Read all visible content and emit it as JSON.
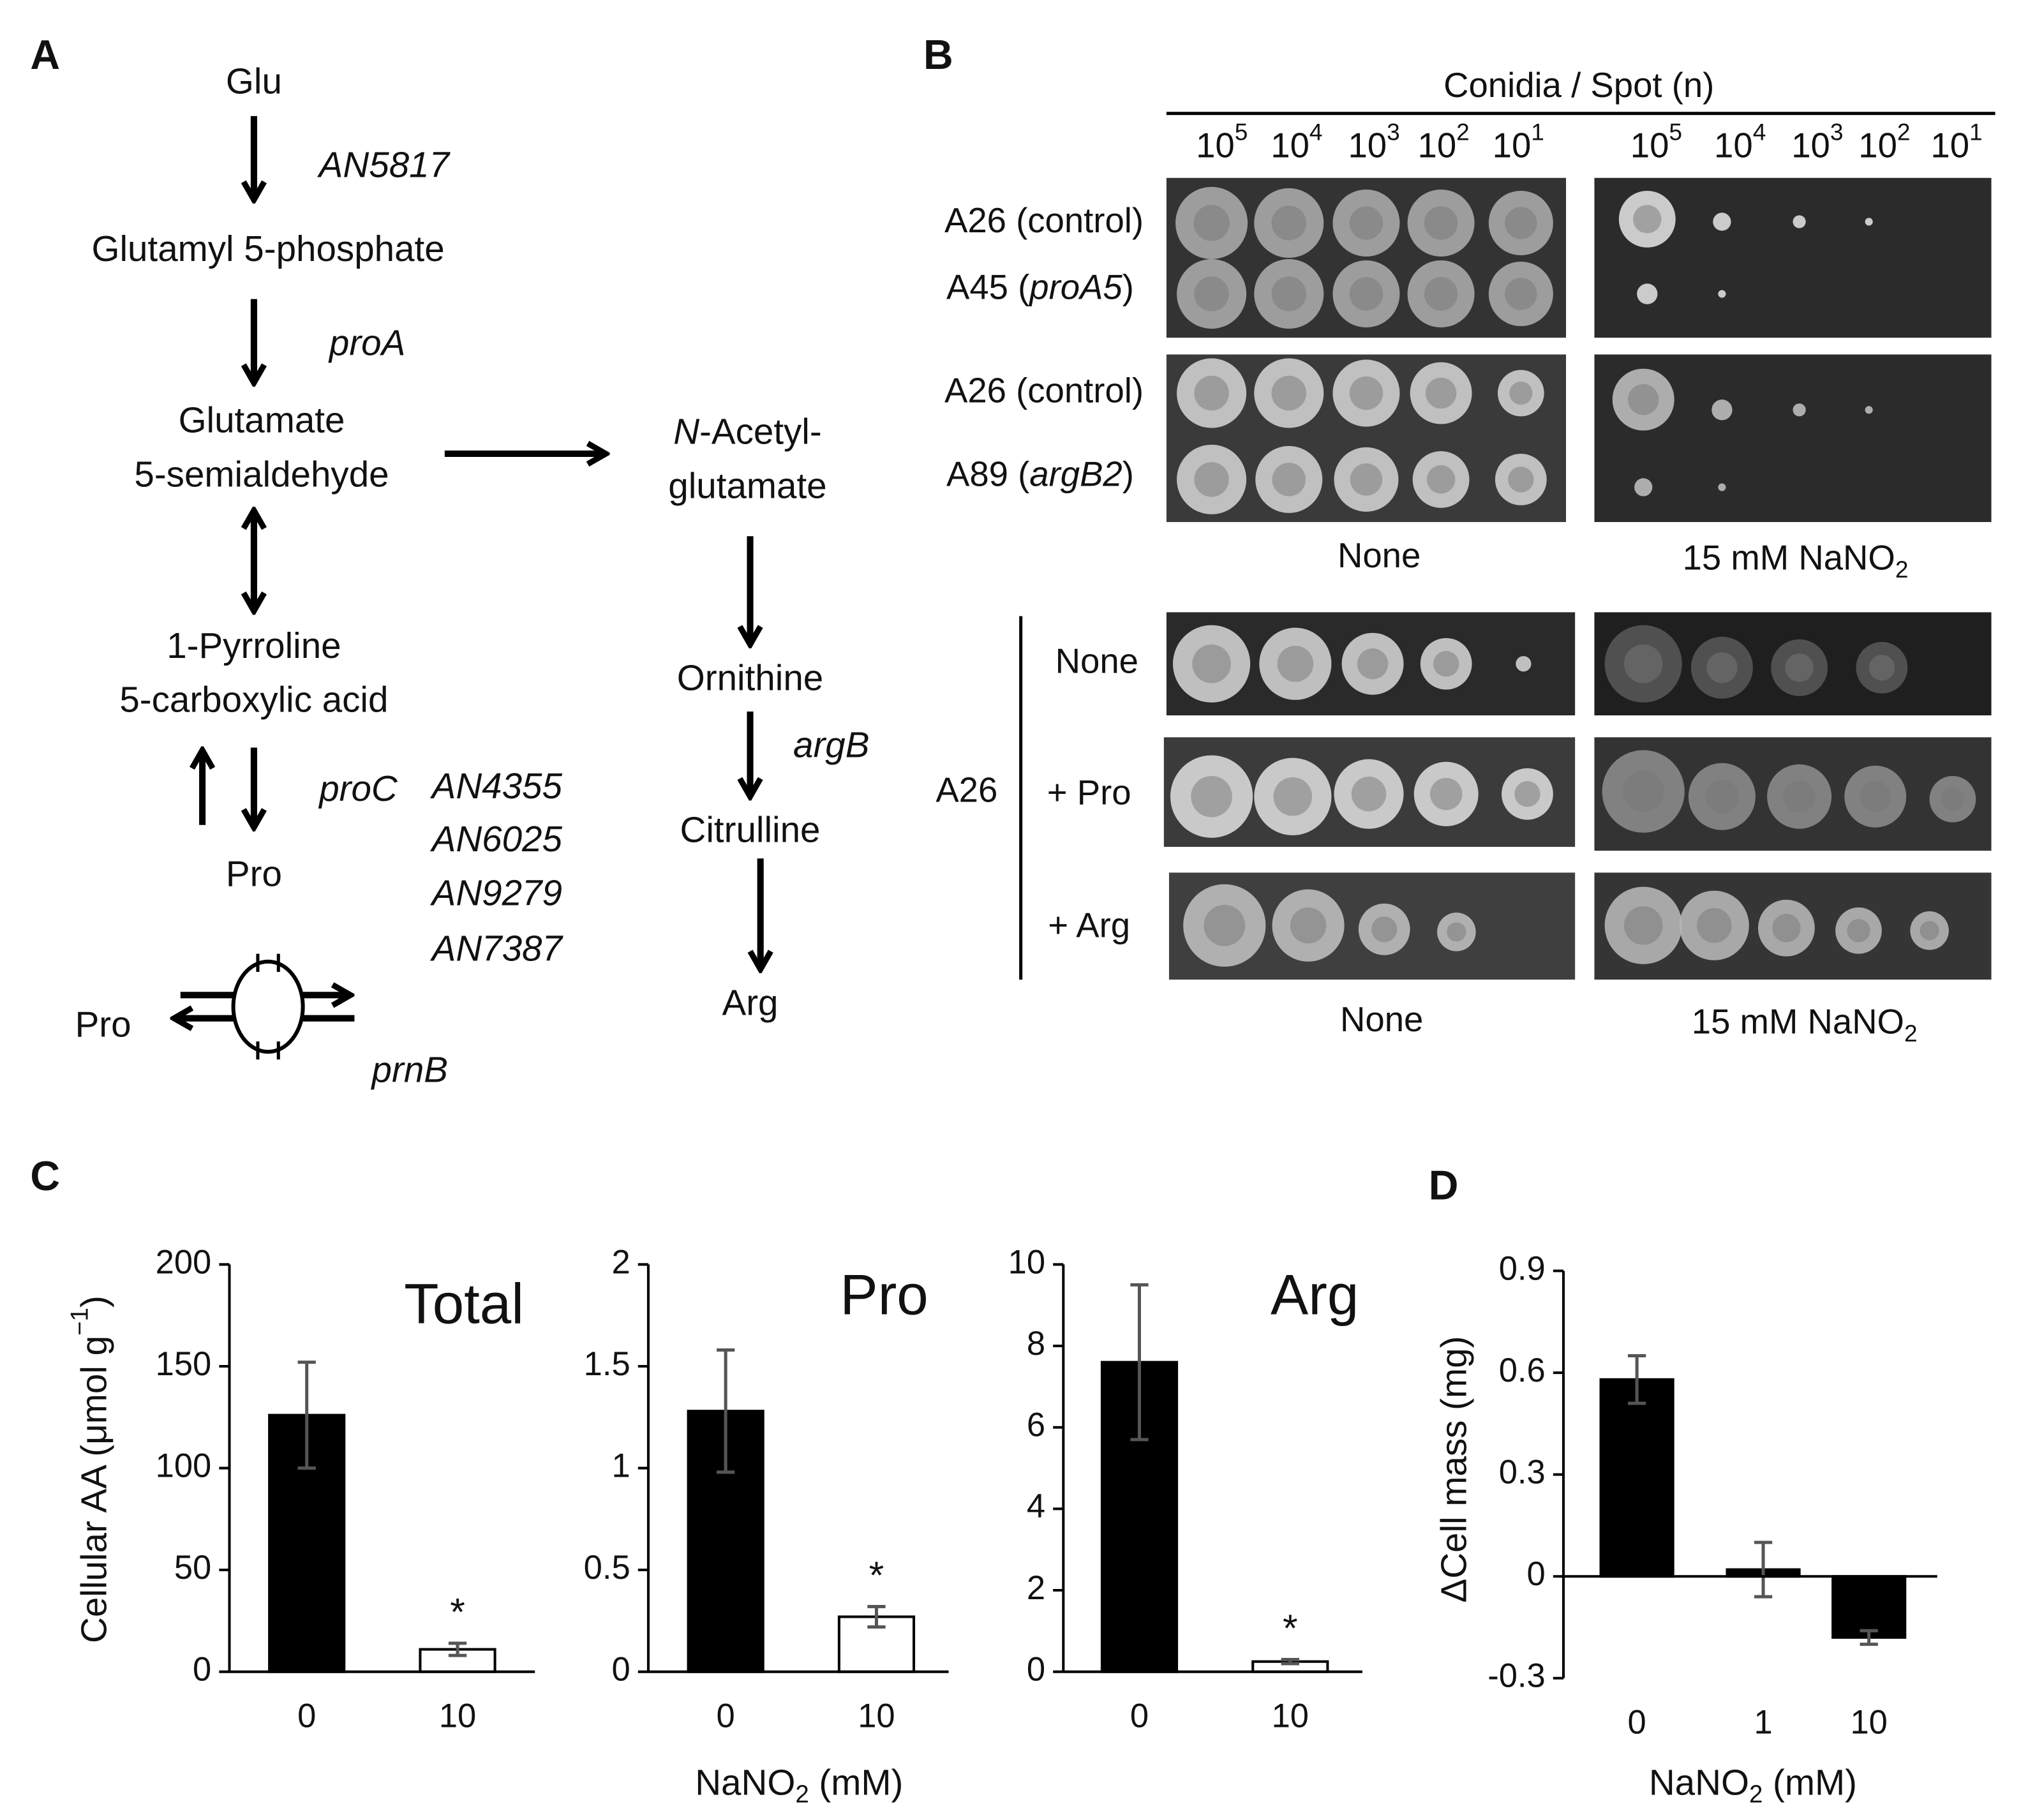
{
  "panel_a": {
    "label": "A",
    "metabolites": [
      "Glu",
      "Glutamyl 5-phosphate",
      "Glutamate",
      "5-semialdehyde",
      "1-Pyrroline",
      "5-carboxylic acid",
      "Pro",
      "Pro",
      [
        {
          "t": "N",
          "s": "i"
        },
        {
          "t": "-Acetyl-",
          "s": "n"
        }
      ],
      "glutamate",
      "Ornithine",
      "Citrulline",
      "Arg"
    ],
    "genes": [
      "AN5817",
      "proA",
      "proC",
      "AN4355",
      "AN6025",
      "AN9279",
      "AN7387",
      "prnB",
      "argB"
    ]
  },
  "panel_b": {
    "label": "B",
    "header": "Conidia / Spot (n)",
    "dilution_rows": [
      [
        [
          {
            "t": "10",
            "s": "n"
          },
          {
            "t": "5",
            "s": "sup"
          }
        ],
        [
          {
            "t": "10",
            "s": "n"
          },
          {
            "t": "4",
            "s": "sup"
          }
        ],
        [
          {
            "t": "10",
            "s": "n"
          },
          {
            "t": "3",
            "s": "sup"
          }
        ],
        [
          {
            "t": "10",
            "s": "n"
          },
          {
            "t": "2",
            "s": "sup"
          }
        ],
        [
          {
            "t": "10",
            "s": "n"
          },
          {
            "t": "1",
            "s": "sup"
          }
        ]
      ],
      [
        [
          {
            "t": "10",
            "s": "n"
          },
          {
            "t": "5",
            "s": "sup"
          }
        ],
        [
          {
            "t": "10",
            "s": "n"
          },
          {
            "t": "4",
            "s": "sup"
          }
        ],
        [
          {
            "t": "10",
            "s": "n"
          },
          {
            "t": "3",
            "s": "sup"
          }
        ],
        [
          {
            "t": "10",
            "s": "n"
          },
          {
            "t": "2",
            "s": "sup"
          }
        ],
        [
          {
            "t": "10",
            "s": "n"
          },
          {
            "t": "1",
            "s": "sup"
          }
        ]
      ]
    ],
    "strains": [
      "A26 (control)",
      [
        {
          "t": "A45 (",
          "s": "n"
        },
        {
          "t": "proA5",
          "s": "i"
        },
        {
          "t": ")",
          "s": "n"
        }
      ],
      "A26 (control)",
      [
        {
          "t": "A89 (",
          "s": "n"
        },
        {
          "t": "argB2",
          "s": "i"
        },
        {
          "t": ")",
          "s": "n"
        }
      ]
    ],
    "media_top": [
      "None",
      [
        {
          "t": "15 mM NaNO",
          "s": "n"
        },
        {
          "t": "2",
          "s": "sub"
        }
      ]
    ],
    "strain_lower": "A26",
    "supplements": [
      "None",
      "+ Pro",
      "+ Arg"
    ],
    "media_bottom": [
      "None",
      [
        {
          "t": "15 mM NaNO",
          "s": "n"
        },
        {
          "t": "2",
          "s": "sub"
        }
      ]
    ]
  },
  "panel_c": {
    "label": "C",
    "y_label": [
      {
        "t": "Cellular AA (μmol g",
        "s": "n"
      },
      {
        "t": "−1",
        "s": "sup"
      },
      {
        "t": ")",
        "s": "n"
      }
    ],
    "x_label": [
      {
        "t": "NaNO",
        "s": "n"
      },
      {
        "t": "2",
        "s": "sub"
      },
      {
        "t": " (mM)",
        "s": "n"
      }
    ]
  },
  "panel_d": {
    "label": "D",
    "y_label": "ΔCell mass (mg)",
    "x_label": [
      {
        "t": "NaNO",
        "s": "n"
      },
      {
        "t": "2",
        "s": "sub"
      },
      {
        "t": " (mM)",
        "s": "n"
      }
    ]
  },
  "chart_data": [
    {
      "type": "bar",
      "title": "Total",
      "categories": [
        "0",
        "10"
      ],
      "values": [
        126,
        11
      ],
      "errors": [
        26,
        3
      ],
      "colors": [
        "#000000",
        "#ffffff"
      ],
      "ylim": [
        0,
        200
      ],
      "yticks": [
        0,
        50,
        100,
        150,
        200
      ],
      "annotations": [
        {
          "index": 1,
          "text": "*"
        }
      ]
    },
    {
      "type": "bar",
      "title": "Pro",
      "categories": [
        "0",
        "10"
      ],
      "values": [
        1.28,
        0.27
      ],
      "errors": [
        0.3,
        0.05
      ],
      "colors": [
        "#000000",
        "#ffffff"
      ],
      "ylim": [
        0,
        2
      ],
      "yticks": [
        0,
        0.5,
        1,
        1.5,
        2
      ],
      "annotations": [
        {
          "index": 1,
          "text": "*"
        }
      ]
    },
    {
      "type": "bar",
      "title": "Arg",
      "categories": [
        "0",
        "10"
      ],
      "values": [
        7.6,
        0.25
      ],
      "errors": [
        1.9,
        0.05
      ],
      "colors": [
        "#000000",
        "#ffffff"
      ],
      "ylim": [
        0,
        10
      ],
      "yticks": [
        0,
        2,
        4,
        6,
        8,
        10
      ],
      "annotations": [
        {
          "index": 1,
          "text": "*"
        }
      ]
    },
    {
      "type": "bar",
      "categories": [
        "0",
        "1",
        "10"
      ],
      "values": [
        0.58,
        0.02,
        -0.18
      ],
      "errors": [
        0.07,
        0.08,
        0.02
      ],
      "colors": [
        "#000000",
        "#000000",
        "#000000"
      ],
      "ylim": [
        -0.3,
        0.9
      ],
      "yticks": [
        -0.3,
        0,
        0.3,
        0.6,
        0.9
      ]
    }
  ]
}
